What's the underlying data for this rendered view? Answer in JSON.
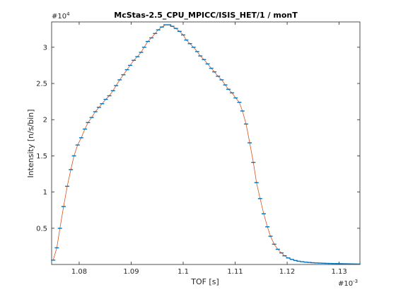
{
  "chart_data": {
    "type": "line",
    "title": "McStas-2.5_CPU_MPICC/ISIS_HET/1 / monT",
    "xlabel": "TOF [s]",
    "ylabel": "Intensity [n/s/bin]",
    "x_exponent_label": "#10",
    "x_exponent_power": "-3",
    "y_exponent_label": "#10",
    "y_exponent_power": "4",
    "x_scale_factor": 0.001,
    "y_scale_factor": 10000,
    "xlim": [
      0.0010747,
      0.001134
    ],
    "ylim": [
      0,
      33500
    ],
    "x_ticks": [
      0.00108,
      0.00109,
      0.0011,
      0.00111,
      0.00112,
      0.00113
    ],
    "x_tick_labels": [
      "1.08",
      "1.09",
      "1.1",
      "1.11",
      "1.12",
      "1.13"
    ],
    "y_ticks": [
      5000,
      10000,
      15000,
      20000,
      25000,
      30000
    ],
    "y_tick_labels": [
      "0.5",
      "1",
      "1.5",
      "2",
      "2.5",
      "3"
    ],
    "grid": false,
    "box": true,
    "colors": {
      "line": "#d95319",
      "marker": "#0072bd",
      "axis": "#262626"
    },
    "series": [
      {
        "x": [
          0.001075,
          0.0010757,
          0.0010763,
          0.001077,
          0.0010777,
          0.0010784,
          0.001079,
          0.0010797,
          0.0010804,
          0.0010811,
          0.0010817,
          0.0010824,
          0.0010831,
          0.0010838,
          0.0010844,
          0.0010851,
          0.0010858,
          0.0010865,
          0.0010871,
          0.0010878,
          0.0010885,
          0.0010892,
          0.0010898,
          0.0010905,
          0.0010912,
          0.0010919,
          0.0010925,
          0.0010932,
          0.0010939,
          0.0010946,
          0.0010952,
          0.0010959,
          0.0010966,
          0.0010973,
          0.0010979,
          0.0010986,
          0.0010993,
          0.0011,
          0.0011006,
          0.0011013,
          0.001102,
          0.0011027,
          0.0011033,
          0.001104,
          0.0011047,
          0.0011054,
          0.001106,
          0.0011067,
          0.0011074,
          0.0011081,
          0.0011087,
          0.0011094,
          0.0011101,
          0.0011108,
          0.0011114,
          0.0011121,
          0.0011128,
          0.0011135,
          0.0011141,
          0.0011148,
          0.0011155,
          0.0011162,
          0.0011168,
          0.0011175,
          0.0011182,
          0.0011189,
          0.0011195,
          0.0011202,
          0.0011209,
          0.0011216,
          0.0011222,
          0.0011229,
          0.0011236,
          0.0011243,
          0.0011249,
          0.0011256,
          0.0011263,
          0.001127,
          0.0011276,
          0.0011283,
          0.001129,
          0.0011297,
          0.0011303,
          0.001131,
          0.0011317,
          0.0011324,
          0.001133,
          0.0011337
        ],
        "y": [
          600,
          2300,
          5000,
          8000,
          10800,
          13100,
          15000,
          16500,
          17500,
          18700,
          19600,
          20300,
          21100,
          21700,
          22200,
          22800,
          23300,
          24000,
          24700,
          25500,
          26200,
          26900,
          27500,
          28200,
          28700,
          29300,
          30000,
          30800,
          31300,
          31900,
          32400,
          32800,
          33100,
          33100,
          32900,
          32600,
          32200,
          31700,
          31000,
          30500,
          30000,
          29400,
          28800,
          28300,
          27700,
          27100,
          26600,
          26000,
          25500,
          24800,
          24200,
          23700,
          23000,
          22400,
          21200,
          19400,
          16800,
          14100,
          11300,
          9100,
          7000,
          5200,
          3900,
          2800,
          2100,
          1600,
          1200,
          900,
          700,
          550,
          450,
          380,
          320,
          280,
          240,
          210,
          190,
          170,
          150,
          140,
          130,
          120,
          110,
          100,
          90,
          80,
          70,
          60
        ]
      }
    ]
  }
}
